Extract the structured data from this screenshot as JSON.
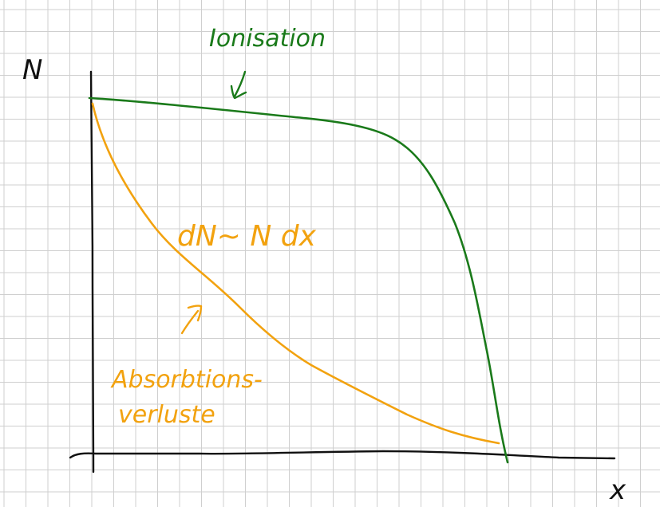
{
  "colors": {
    "grid": "#cfcfcf",
    "axis": "#111111",
    "ionisation": "#1a7a1a",
    "absorption": "#f2a20f",
    "background": "#ffffff"
  },
  "axes": {
    "y_label": "N",
    "x_label": "x"
  },
  "labels": {
    "ionisation": "Ionisation",
    "formula": "dN~ N dx",
    "absorption_line1": "Absorbtions-",
    "absorption_line2": "verluste"
  },
  "icons": {
    "ionisation_arrow": "arrow-down-left-icon",
    "absorption_arrow": "arrow-up-right-icon"
  }
}
